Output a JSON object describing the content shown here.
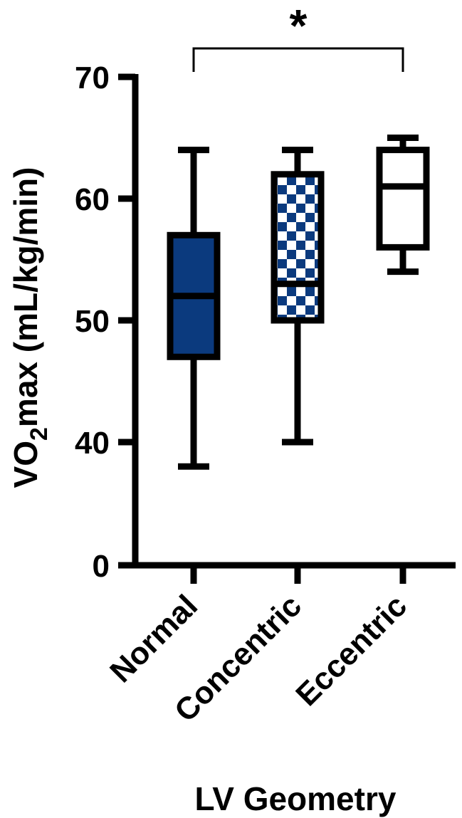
{
  "chart_data": {
    "type": "box",
    "ylabel_main": "VO",
    "ylabel_sub": "2",
    "ylabel_rest": "max (mL/kg/min)",
    "xlabel": "LV Geometry",
    "y_ticks": [
      0,
      40,
      50,
      60,
      70
    ],
    "y_tick_labels": [
      "0",
      "40",
      "50",
      "60",
      "70"
    ],
    "y_axis_break": "values between 0 and 35 are compressed; 0 is shown at the axis bottom",
    "categories": [
      "Normal",
      "Concentric",
      "Eccentric"
    ],
    "boxes": [
      {
        "name": "Normal",
        "min": 38,
        "q1": 47,
        "median": 52,
        "q3": 57,
        "max": 64,
        "fill": "solid",
        "color": "#0b3a7e"
      },
      {
        "name": "Concentric",
        "min": 40,
        "q1": 50,
        "median": 53,
        "q3": 62,
        "max": 64,
        "fill": "checker",
        "color": "#0b3a7e"
      },
      {
        "name": "Eccentric",
        "min": 54,
        "q1": 56,
        "median": 61,
        "q3": 64,
        "max": 65,
        "fill": "none",
        "color": "#ffffff"
      }
    ],
    "significance": {
      "from": "Normal",
      "to": "Eccentric",
      "label": "*"
    }
  },
  "colors": {
    "navy": "#0b3a7e",
    "stroke": "#000000"
  }
}
